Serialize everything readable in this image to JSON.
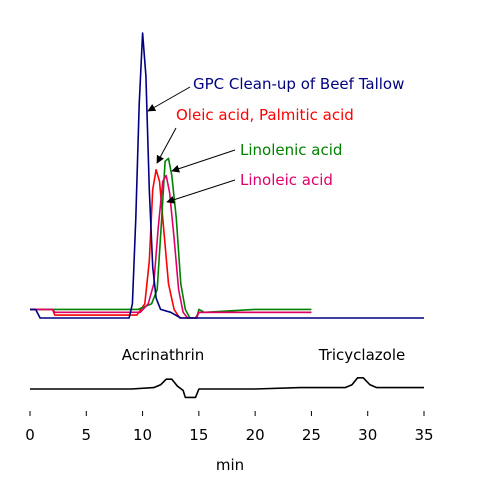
{
  "chart_data": {
    "type": "line",
    "xlabel": "min",
    "xlim": [
      0,
      35
    ],
    "grid": false,
    "legend": "none",
    "x_ticks": [
      0,
      5,
      10,
      15,
      20,
      25,
      30,
      35
    ],
    "x_tick_labels": [
      "0",
      "5",
      "10",
      "15",
      "20",
      "25",
      "30",
      "35"
    ],
    "panels": [
      {
        "name": "upper",
        "series": [
          {
            "name": "GPC Clean-up of Beef Tallow",
            "color": "#000080",
            "points": [
              [
                0,
                0.03
              ],
              [
                0.5,
                0.03
              ],
              [
                0.9,
                0.0
              ],
              [
                8.8,
                0.0
              ],
              [
                9.1,
                0.05
              ],
              [
                9.4,
                0.35
              ],
              [
                9.7,
                0.75
              ],
              [
                10.0,
                1.0
              ],
              [
                10.3,
                0.85
              ],
              [
                10.6,
                0.45
              ],
              [
                10.9,
                0.18
              ],
              [
                11.2,
                0.07
              ],
              [
                11.6,
                0.03
              ],
              [
                12.5,
                0.02
              ],
              [
                13.4,
                0.0
              ],
              [
                14.0,
                0.0
              ],
              [
                17.0,
                0.0
              ],
              [
                20.0,
                0.0
              ],
              [
                23.0,
                0.0
              ],
              [
                26.0,
                0.0
              ],
              [
                29.0,
                0.0
              ],
              [
                32.0,
                0.0
              ],
              [
                35.0,
                0.0
              ]
            ]
          },
          {
            "name": "Oleic acid, Palmitic acid",
            "color": "#ff0000",
            "points": [
              [
                0,
                0.03
              ],
              [
                2.0,
                0.03
              ],
              [
                2.2,
                0.01
              ],
              [
                9.5,
                0.01
              ],
              [
                10.2,
                0.05
              ],
              [
                10.6,
                0.2
              ],
              [
                10.9,
                0.45
              ],
              [
                11.2,
                0.52
              ],
              [
                11.5,
                0.48
              ],
              [
                11.9,
                0.3
              ],
              [
                12.3,
                0.12
              ],
              [
                12.8,
                0.03
              ],
              [
                13.3,
                0.0
              ],
              [
                14.7,
                0.0
              ],
              [
                15.0,
                0.02
              ],
              [
                16.0,
                0.02
              ],
              [
                20.0,
                0.02
              ],
              [
                25.0,
                0.02
              ]
            ]
          },
          {
            "name": "Linolenic acid",
            "color": "#008000",
            "points": [
              [
                0,
                0.03
              ],
              [
                9.6,
                0.03
              ],
              [
                10.2,
                0.04
              ],
              [
                10.8,
                0.05
              ],
              [
                11.3,
                0.1
              ],
              [
                11.7,
                0.35
              ],
              [
                12.0,
                0.55
              ],
              [
                12.3,
                0.56
              ],
              [
                12.6,
                0.5
              ],
              [
                13.0,
                0.35
              ],
              [
                13.4,
                0.12
              ],
              [
                13.8,
                0.03
              ],
              [
                14.2,
                0.0
              ],
              [
                14.8,
                0.0
              ],
              [
                15.0,
                0.03
              ],
              [
                15.5,
                0.02
              ],
              [
                20.0,
                0.03
              ],
              [
                25.0,
                0.03
              ]
            ]
          },
          {
            "name": "Linoleic acid",
            "color": "#e0006a",
            "points": [
              [
                0,
                0.03
              ],
              [
                2.0,
                0.03
              ],
              [
                2.2,
                0.02
              ],
              [
                9.8,
                0.02
              ],
              [
                10.5,
                0.05
              ],
              [
                11.0,
                0.12
              ],
              [
                11.4,
                0.32
              ],
              [
                11.8,
                0.48
              ],
              [
                12.1,
                0.5
              ],
              [
                12.4,
                0.44
              ],
              [
                12.8,
                0.28
              ],
              [
                13.2,
                0.1
              ],
              [
                13.6,
                0.02
              ],
              [
                14.0,
                0.0
              ],
              [
                14.8,
                0.0
              ],
              [
                15.0,
                0.02
              ],
              [
                20.0,
                0.02
              ],
              [
                25.0,
                0.02
              ]
            ]
          }
        ],
        "annotations": [
          {
            "text": "GPC Clean-up of Beef Tallow",
            "color": "#000080",
            "arrow_to_series": 0
          },
          {
            "text": "Oleic acid, Palmitic acid",
            "color": "#ff0000",
            "arrow_to_series": 1
          },
          {
            "text": "Linolenic acid",
            "color": "#008000",
            "arrow_to_series": 2
          },
          {
            "text": "Linoleic acid",
            "color": "#e0006a",
            "arrow_to_series": 3
          }
        ]
      },
      {
        "name": "lower",
        "series": [
          {
            "name": "",
            "color": "#000000",
            "points": [
              [
                0,
                0.0
              ],
              [
                3,
                0.0
              ],
              [
                6,
                0.0
              ],
              [
                9,
                0.0
              ],
              [
                11,
                0.01
              ],
              [
                11.6,
                0.03
              ],
              [
                12.1,
                0.07
              ],
              [
                12.6,
                0.07
              ],
              [
                13.1,
                0.02
              ],
              [
                13.6,
                -0.01
              ],
              [
                13.8,
                -0.06
              ],
              [
                14.7,
                -0.06
              ],
              [
                15.0,
                0.0
              ],
              [
                16,
                0.0
              ],
              [
                20,
                0.0
              ],
              [
                24,
                0.01
              ],
              [
                28,
                0.01
              ],
              [
                28.6,
                0.03
              ],
              [
                29.1,
                0.08
              ],
              [
                29.6,
                0.08
              ],
              [
                30.2,
                0.03
              ],
              [
                30.8,
                0.01
              ],
              [
                33,
                0.01
              ],
              [
                35,
                0.01
              ]
            ]
          }
        ],
        "annotations": [
          {
            "text": "Acrinathrin",
            "color": "#000000"
          },
          {
            "text": "Tricyclazole",
            "color": "#000000"
          }
        ]
      }
    ]
  }
}
